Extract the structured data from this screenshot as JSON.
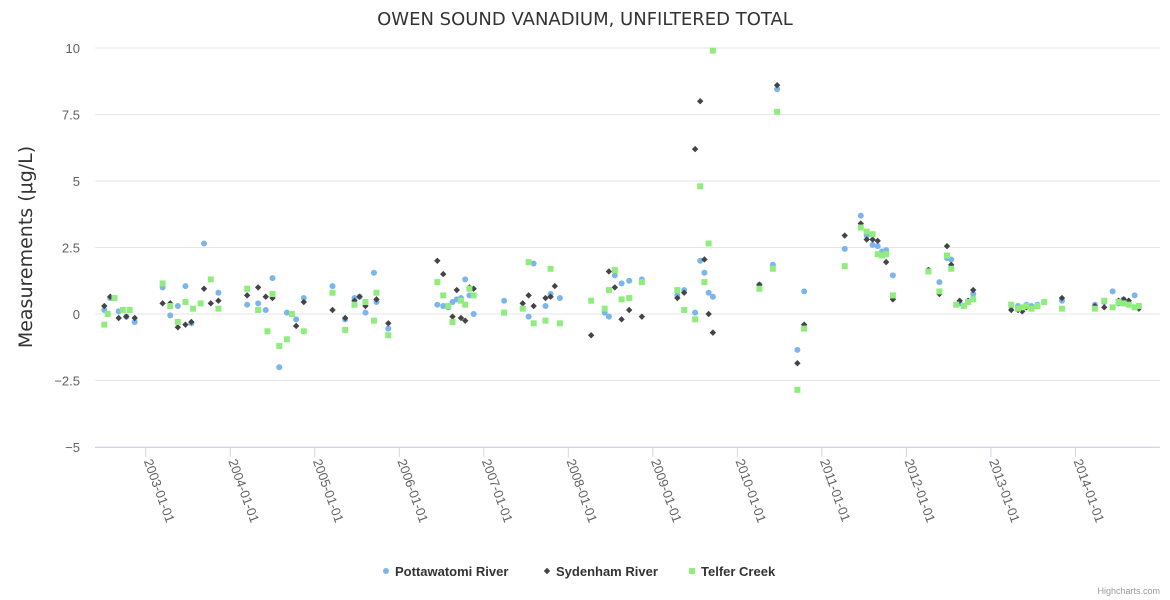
{
  "chart_data": {
    "type": "scatter",
    "title": "OWEN SOUND VANADIUM, UNFILTERED TOTAL",
    "xlabel": "",
    "ylabel": "Measurements (μg/L)",
    "ylim": [
      -5,
      10
    ],
    "xlim": [
      2002.4,
      2015.0
    ],
    "y_ticks": [
      -5,
      -2.5,
      0,
      2.5,
      5,
      7.5,
      10
    ],
    "y_tick_labels": [
      "−5",
      "−2.5",
      "0",
      "2.5",
      "5",
      "7.5",
      "10"
    ],
    "x_ticks": [
      2003,
      2004,
      2005,
      2006,
      2007,
      2008,
      2009,
      2010,
      2011,
      2012,
      2013,
      2014
    ],
    "x_tick_labels": [
      "2003-01-01",
      "2004-01-01",
      "2005-01-01",
      "2006-01-01",
      "2007-01-01",
      "2008-01-01",
      "2009-01-01",
      "2010-01-01",
      "2011-01-01",
      "2012-01-01",
      "2013-01-01",
      "2014-01-01"
    ],
    "legend_position": "bottom-center",
    "credits": "Highcharts.com",
    "series": [
      {
        "name": "Pottawatomi River",
        "color": "#7cb5ec",
        "marker": "circle",
        "points": [
          [
            2002.51,
            0.15
          ],
          [
            2002.58,
            0.6
          ],
          [
            2002.68,
            0.1
          ],
          [
            2002.77,
            -0.1
          ],
          [
            2002.87,
            -0.3
          ],
          [
            2003.2,
            1.0
          ],
          [
            2003.29,
            -0.05
          ],
          [
            2003.38,
            0.3
          ],
          [
            2003.47,
            1.05
          ],
          [
            2003.54,
            -0.35
          ],
          [
            2003.69,
            2.65
          ],
          [
            2003.86,
            0.8
          ],
          [
            2004.2,
            0.35
          ],
          [
            2004.33,
            0.4
          ],
          [
            2004.42,
            0.15
          ],
          [
            2004.5,
            1.35
          ],
          [
            2004.58,
            -2.0
          ],
          [
            2004.67,
            0.05
          ],
          [
            2004.78,
            -0.2
          ],
          [
            2004.87,
            0.6
          ],
          [
            2005.21,
            1.05
          ],
          [
            2005.36,
            -0.2
          ],
          [
            2005.47,
            0.6
          ],
          [
            2005.53,
            0.65
          ],
          [
            2005.6,
            0.05
          ],
          [
            2005.7,
            1.55
          ],
          [
            2005.73,
            0.45
          ],
          [
            2005.87,
            -0.55
          ],
          [
            2006.45,
            0.35
          ],
          [
            2006.52,
            0.3
          ],
          [
            2006.58,
            0.25
          ],
          [
            2006.63,
            0.45
          ],
          [
            2006.68,
            0.55
          ],
          [
            2006.73,
            0.6
          ],
          [
            2006.78,
            1.3
          ],
          [
            2006.83,
            0.7
          ],
          [
            2006.88,
            0.0
          ],
          [
            2007.24,
            0.5
          ],
          [
            2007.46,
            0.2
          ],
          [
            2007.53,
            -0.1
          ],
          [
            2007.59,
            1.9
          ],
          [
            2007.73,
            0.3
          ],
          [
            2007.79,
            0.75
          ],
          [
            2007.9,
            0.6
          ],
          [
            2008.43,
            0.05
          ],
          [
            2008.48,
            -0.1
          ],
          [
            2008.55,
            1.45
          ],
          [
            2008.63,
            1.15
          ],
          [
            2008.72,
            1.25
          ],
          [
            2008.87,
            1.3
          ],
          [
            2009.29,
            0.7
          ],
          [
            2009.37,
            0.9
          ],
          [
            2009.5,
            0.05
          ],
          [
            2009.56,
            2.0
          ],
          [
            2009.61,
            1.55
          ],
          [
            2009.66,
            0.8
          ],
          [
            2009.71,
            0.65
          ],
          [
            2010.26,
            1.1
          ],
          [
            2010.42,
            1.85
          ],
          [
            2010.47,
            8.45
          ],
          [
            2010.71,
            -1.35
          ],
          [
            2010.79,
            0.85
          ],
          [
            2011.27,
            2.45
          ],
          [
            2011.46,
            3.7
          ],
          [
            2011.53,
            2.95
          ],
          [
            2011.6,
            2.6
          ],
          [
            2011.66,
            2.55
          ],
          [
            2011.71,
            2.35
          ],
          [
            2011.76,
            2.4
          ],
          [
            2011.84,
            1.45
          ],
          [
            2012.26,
            1.65
          ],
          [
            2012.39,
            1.2
          ],
          [
            2012.48,
            2.1
          ],
          [
            2012.53,
            2.05
          ],
          [
            2012.63,
            0.4
          ],
          [
            2012.73,
            0.45
          ],
          [
            2012.79,
            0.75
          ],
          [
            2013.24,
            0.3
          ],
          [
            2013.32,
            0.3
          ],
          [
            2013.37,
            0.25
          ],
          [
            2013.42,
            0.35
          ],
          [
            2013.48,
            0.3
          ],
          [
            2013.55,
            0.35
          ],
          [
            2013.63,
            0.45
          ],
          [
            2013.84,
            0.5
          ],
          [
            2014.23,
            0.35
          ],
          [
            2014.34,
            0.45
          ],
          [
            2014.44,
            0.85
          ],
          [
            2014.51,
            0.4
          ],
          [
            2014.57,
            0.55
          ],
          [
            2014.63,
            0.4
          ],
          [
            2014.7,
            0.7
          ],
          [
            2014.75,
            0.3
          ]
        ]
      },
      {
        "name": "Sydenham River",
        "color": "#434348",
        "marker": "diamond",
        "points": [
          [
            2002.51,
            0.3
          ],
          [
            2002.58,
            0.65
          ],
          [
            2002.68,
            -0.15
          ],
          [
            2002.77,
            -0.1
          ],
          [
            2002.87,
            -0.15
          ],
          [
            2003.2,
            0.4
          ],
          [
            2003.29,
            0.4
          ],
          [
            2003.38,
            -0.5
          ],
          [
            2003.47,
            -0.4
          ],
          [
            2003.54,
            -0.3
          ],
          [
            2003.69,
            0.95
          ],
          [
            2003.77,
            0.4
          ],
          [
            2003.86,
            0.5
          ],
          [
            2004.2,
            0.7
          ],
          [
            2004.33,
            1.0
          ],
          [
            2004.42,
            0.65
          ],
          [
            2004.5,
            0.6
          ],
          [
            2004.78,
            -0.45
          ],
          [
            2004.87,
            0.45
          ],
          [
            2005.21,
            0.15
          ],
          [
            2005.36,
            -0.15
          ],
          [
            2005.47,
            0.5
          ],
          [
            2005.53,
            0.65
          ],
          [
            2005.6,
            0.3
          ],
          [
            2005.73,
            0.55
          ],
          [
            2005.87,
            -0.35
          ],
          [
            2006.45,
            2.0
          ],
          [
            2006.52,
            1.5
          ],
          [
            2006.63,
            -0.1
          ],
          [
            2006.68,
            0.9
          ],
          [
            2006.73,
            -0.15
          ],
          [
            2006.78,
            -0.25
          ],
          [
            2006.83,
            1.0
          ],
          [
            2006.88,
            0.95
          ],
          [
            2007.46,
            0.4
          ],
          [
            2007.53,
            0.7
          ],
          [
            2007.59,
            0.3
          ],
          [
            2007.73,
            0.6
          ],
          [
            2007.79,
            0.65
          ],
          [
            2007.84,
            1.05
          ],
          [
            2008.27,
            -0.8
          ],
          [
            2008.48,
            1.6
          ],
          [
            2008.55,
            1.0
          ],
          [
            2008.63,
            -0.2
          ],
          [
            2008.72,
            0.15
          ],
          [
            2008.87,
            -0.1
          ],
          [
            2009.29,
            0.6
          ],
          [
            2009.37,
            0.8
          ],
          [
            2009.5,
            6.2
          ],
          [
            2009.56,
            8.0
          ],
          [
            2009.61,
            2.05
          ],
          [
            2009.66,
            0.0
          ],
          [
            2009.71,
            -0.7
          ],
          [
            2010.26,
            1.1
          ],
          [
            2010.47,
            8.6
          ],
          [
            2010.71,
            -1.85
          ],
          [
            2010.79,
            -0.4
          ],
          [
            2011.27,
            2.95
          ],
          [
            2011.46,
            3.4
          ],
          [
            2011.53,
            2.8
          ],
          [
            2011.6,
            2.8
          ],
          [
            2011.66,
            2.75
          ],
          [
            2011.76,
            1.95
          ],
          [
            2011.84,
            0.55
          ],
          [
            2012.26,
            1.65
          ],
          [
            2012.39,
            0.75
          ],
          [
            2012.48,
            2.55
          ],
          [
            2012.53,
            1.85
          ],
          [
            2012.63,
            0.5
          ],
          [
            2012.73,
            0.5
          ],
          [
            2012.79,
            0.9
          ],
          [
            2013.24,
            0.15
          ],
          [
            2013.32,
            0.15
          ],
          [
            2013.37,
            0.1
          ],
          [
            2013.42,
            0.25
          ],
          [
            2013.55,
            0.3
          ],
          [
            2013.84,
            0.6
          ],
          [
            2014.23,
            0.3
          ],
          [
            2014.34,
            0.25
          ],
          [
            2014.51,
            0.5
          ],
          [
            2014.57,
            0.55
          ],
          [
            2014.63,
            0.5
          ],
          [
            2014.75,
            0.2
          ]
        ]
      },
      {
        "name": "Telfer Creek",
        "color": "#90ed7d",
        "marker": "square",
        "points": [
          [
            2002.51,
            -0.4
          ],
          [
            2002.55,
            0.0
          ],
          [
            2002.63,
            0.6
          ],
          [
            2002.73,
            0.15
          ],
          [
            2002.81,
            0.15
          ],
          [
            2003.2,
            1.15
          ],
          [
            2003.29,
            0.3
          ],
          [
            2003.38,
            -0.3
          ],
          [
            2003.47,
            0.45
          ],
          [
            2003.56,
            0.2
          ],
          [
            2003.65,
            0.4
          ],
          [
            2003.77,
            1.3
          ],
          [
            2003.86,
            0.2
          ],
          [
            2004.2,
            0.95
          ],
          [
            2004.33,
            0.15
          ],
          [
            2004.44,
            -0.65
          ],
          [
            2004.5,
            0.75
          ],
          [
            2004.58,
            -1.2
          ],
          [
            2004.67,
            -0.95
          ],
          [
            2004.73,
            0.0
          ],
          [
            2004.87,
            -0.65
          ],
          [
            2005.21,
            0.8
          ],
          [
            2005.36,
            -0.6
          ],
          [
            2005.47,
            0.35
          ],
          [
            2005.6,
            0.45
          ],
          [
            2005.7,
            -0.25
          ],
          [
            2005.73,
            0.8
          ],
          [
            2005.87,
            -0.8
          ],
          [
            2006.45,
            1.2
          ],
          [
            2006.52,
            0.7
          ],
          [
            2006.58,
            0.3
          ],
          [
            2006.63,
            -0.3
          ],
          [
            2006.73,
            0.5
          ],
          [
            2006.78,
            0.35
          ],
          [
            2006.83,
            0.95
          ],
          [
            2006.88,
            0.7
          ],
          [
            2007.24,
            0.05
          ],
          [
            2007.46,
            0.2
          ],
          [
            2007.53,
            1.95
          ],
          [
            2007.59,
            -0.35
          ],
          [
            2007.73,
            -0.25
          ],
          [
            2007.79,
            1.7
          ],
          [
            2007.9,
            -0.35
          ],
          [
            2008.27,
            0.5
          ],
          [
            2008.43,
            0.2
          ],
          [
            2008.48,
            0.9
          ],
          [
            2008.55,
            1.65
          ],
          [
            2008.63,
            0.55
          ],
          [
            2008.72,
            0.6
          ],
          [
            2008.87,
            1.2
          ],
          [
            2009.29,
            0.9
          ],
          [
            2009.37,
            0.15
          ],
          [
            2009.5,
            -0.2
          ],
          [
            2009.56,
            4.8
          ],
          [
            2009.61,
            1.2
          ],
          [
            2009.66,
            2.65
          ],
          [
            2009.71,
            9.9
          ],
          [
            2010.26,
            0.95
          ],
          [
            2010.42,
            1.7
          ],
          [
            2010.47,
            7.6
          ],
          [
            2010.71,
            -2.85
          ],
          [
            2010.79,
            -0.55
          ],
          [
            2011.27,
            1.8
          ],
          [
            2011.46,
            3.25
          ],
          [
            2011.53,
            3.1
          ],
          [
            2011.6,
            3.0
          ],
          [
            2011.66,
            2.25
          ],
          [
            2011.71,
            2.2
          ],
          [
            2011.76,
            2.25
          ],
          [
            2011.84,
            0.7
          ],
          [
            2012.26,
            1.6
          ],
          [
            2012.39,
            0.85
          ],
          [
            2012.48,
            2.2
          ],
          [
            2012.53,
            1.7
          ],
          [
            2012.59,
            0.35
          ],
          [
            2012.68,
            0.3
          ],
          [
            2012.73,
            0.45
          ],
          [
            2012.79,
            0.55
          ],
          [
            2013.24,
            0.35
          ],
          [
            2013.32,
            0.2
          ],
          [
            2013.37,
            0.25
          ],
          [
            2013.42,
            0.3
          ],
          [
            2013.48,
            0.2
          ],
          [
            2013.55,
            0.3
          ],
          [
            2013.63,
            0.45
          ],
          [
            2013.84,
            0.2
          ],
          [
            2014.23,
            0.2
          ],
          [
            2014.34,
            0.5
          ],
          [
            2014.44,
            0.25
          ],
          [
            2014.51,
            0.45
          ],
          [
            2014.57,
            0.4
          ],
          [
            2014.63,
            0.35
          ],
          [
            2014.7,
            0.25
          ],
          [
            2014.75,
            0.3
          ]
        ]
      }
    ]
  }
}
